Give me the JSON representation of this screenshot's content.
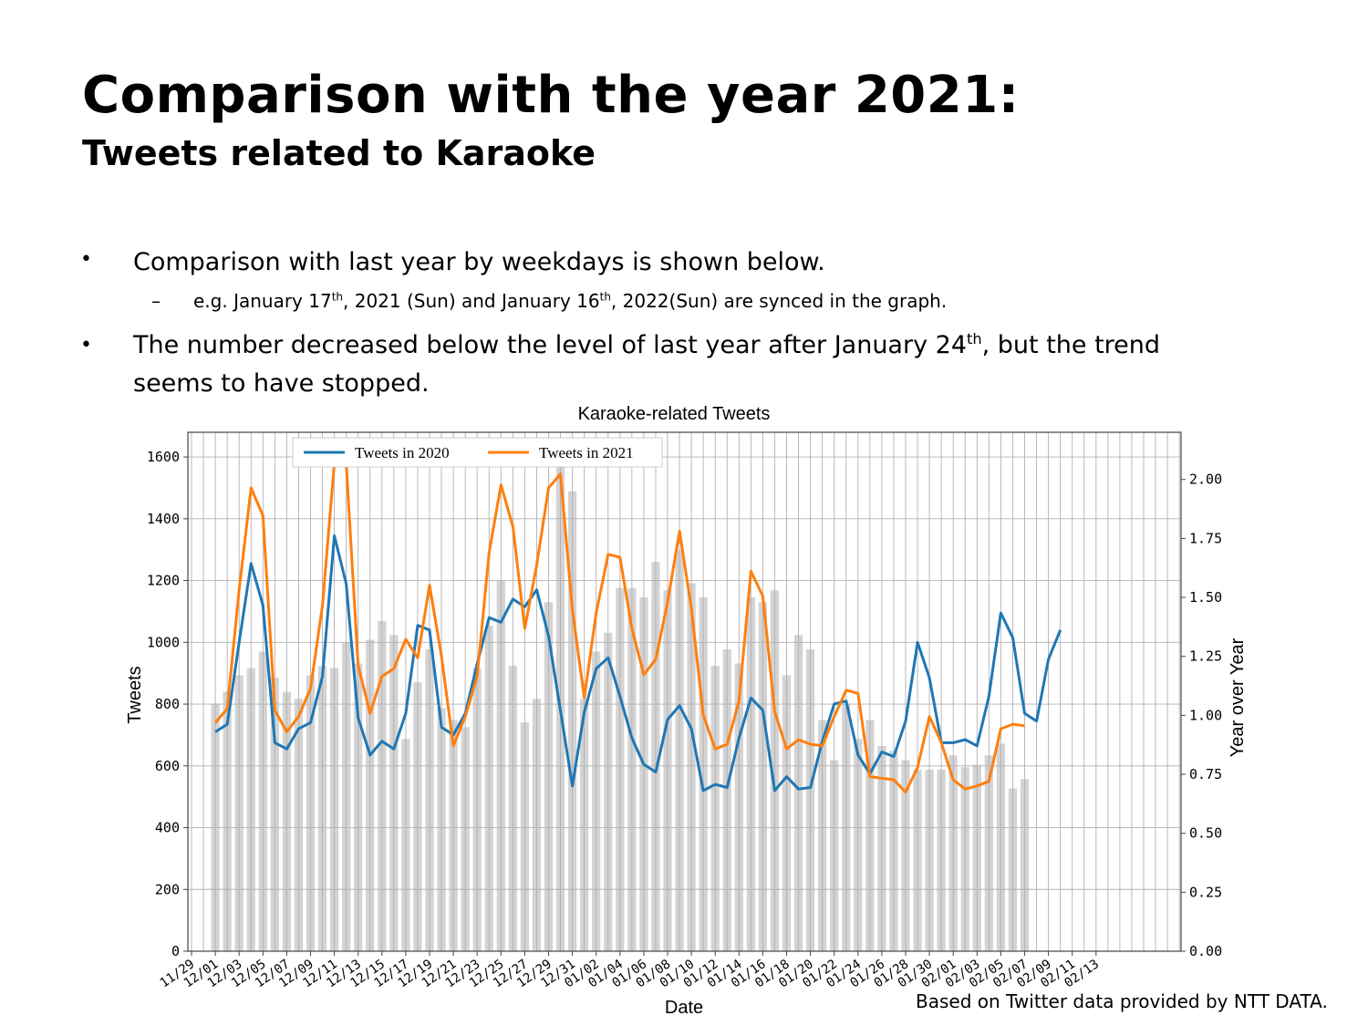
{
  "slide": {
    "title": "Comparison with the year 2021:",
    "subtitle": "Tweets related to Karaoke",
    "bullet1": "Comparison with last year by weekdays is shown below.",
    "sub1_a": "e.g. January 17",
    "sub1_sup1": "th",
    "sub1_b": ", 2021 (Sun) and January 16",
    "sub1_sup2": "th",
    "sub1_c": ", 2022(Sun) are synced in the graph.",
    "bullet2_a": "The number decreased below the level of last year after January 24",
    "bullet2_sup": "th",
    "bullet2_b": ", but the trend",
    "bullet2_c": "seems to have stopped.",
    "footer": "Based on Twitter data provided by NTT DATA."
  },
  "chart_data": {
    "type": "bar+line",
    "title": "Karaoke-related Tweets",
    "xlabel": "Date",
    "ylabel": "Tweets",
    "y2label": "Year over Year",
    "ylim": [
      0,
      1680
    ],
    "y2lim": [
      0,
      2.2
    ],
    "yticks": [
      "0",
      "200",
      "400",
      "600",
      "800",
      "1000",
      "1200",
      "1400",
      "1600"
    ],
    "y2ticks": [
      "0.00",
      "0.25",
      "0.50",
      "0.75",
      "1.00",
      "1.25",
      "1.50",
      "1.75",
      "2.00"
    ],
    "xticks": [
      "11/29",
      "12/01",
      "12/03",
      "12/05",
      "12/07",
      "12/09",
      "12/11",
      "12/13",
      "12/15",
      "12/17",
      "12/19",
      "12/21",
      "12/23",
      "12/25",
      "12/27",
      "12/29",
      "12/31",
      "01/02",
      "01/04",
      "01/06",
      "01/08",
      "01/10",
      "01/12",
      "01/14",
      "01/16",
      "01/18",
      "01/20",
      "01/22",
      "01/24",
      "01/26",
      "01/28",
      "01/30",
      "02/01",
      "02/03",
      "02/05",
      "02/07",
      "02/09",
      "02/11",
      "02/13"
    ],
    "grid": true,
    "legend_position": "top-left",
    "series": [
      {
        "name": "Tweets in 2020",
        "color": "#1f77b4",
        "start_index": 2,
        "values": [
          710,
          735,
          1000,
          1255,
          1120,
          675,
          655,
          720,
          740,
          890,
          1345,
          1190,
          755,
          635,
          680,
          655,
          770,
          1055,
          1040,
          725,
          700,
          770,
          930,
          1080,
          1065,
          1140,
          1115,
          1170,
          1020,
          780,
          535,
          775,
          915,
          950,
          825,
          690,
          605,
          580,
          750,
          795,
          720,
          520,
          540,
          530,
          690,
          820,
          780,
          520,
          565,
          525,
          530,
          680,
          800,
          810,
          635,
          575,
          645,
          630,
          745,
          1000,
          885,
          675,
          675,
          685,
          665,
          825,
          1095,
          1015,
          770,
          745,
          945,
          1040
        ]
      },
      {
        "name": "Tweets in 2021",
        "color": "#ff7f0e",
        "start_index": 2,
        "values": [
          740,
          785,
          1170,
          1500,
          1410,
          780,
          710,
          760,
          850,
          1120,
          1580,
          1580,
          925,
          770,
          890,
          915,
          1010,
          950,
          1185,
          955,
          665,
          760,
          890,
          1290,
          1510,
          1375,
          1045,
          1250,
          1500,
          1545,
          1105,
          820,
          1095,
          1285,
          1275,
          1045,
          895,
          945,
          1130,
          1360,
          1110,
          765,
          655,
          670,
          810,
          1230,
          1150,
          775,
          655,
          685,
          670,
          665,
          760,
          845,
          835,
          565,
          560,
          555,
          515,
          595,
          760,
          675,
          555,
          525,
          535,
          550,
          720,
          735,
          730
        ]
      }
    ],
    "bars": {
      "name": "Year over Year",
      "color": "#d3d3d3",
      "start_index": 2,
      "values": [
        1.05,
        1.1,
        1.17,
        1.2,
        1.27,
        1.16,
        1.1,
        1.07,
        1.17,
        1.21,
        1.2,
        1.31,
        1.22,
        1.32,
        1.4,
        1.34,
        0.9,
        1.14,
        1.28,
        1.03,
        0.98,
        0.95,
        1.2,
        1.38,
        1.57,
        1.21,
        0.97,
        1.07,
        1.48,
        2.13,
        1.95,
        1.07,
        1.27,
        1.35,
        1.54,
        1.54,
        1.5,
        1.65,
        1.53,
        1.7,
        1.56,
        1.5,
        1.21,
        1.28,
        1.22,
        1.5,
        1.48,
        1.53,
        1.17,
        1.34,
        1.28,
        0.98,
        0.81,
        1.05,
        0.9,
        0.98,
        0.87,
        0.85,
        0.81,
        0.77,
        0.77,
        0.77,
        0.83,
        0.78,
        0.79,
        0.83,
        0.88,
        0.69,
        0.73
      ]
    }
  }
}
